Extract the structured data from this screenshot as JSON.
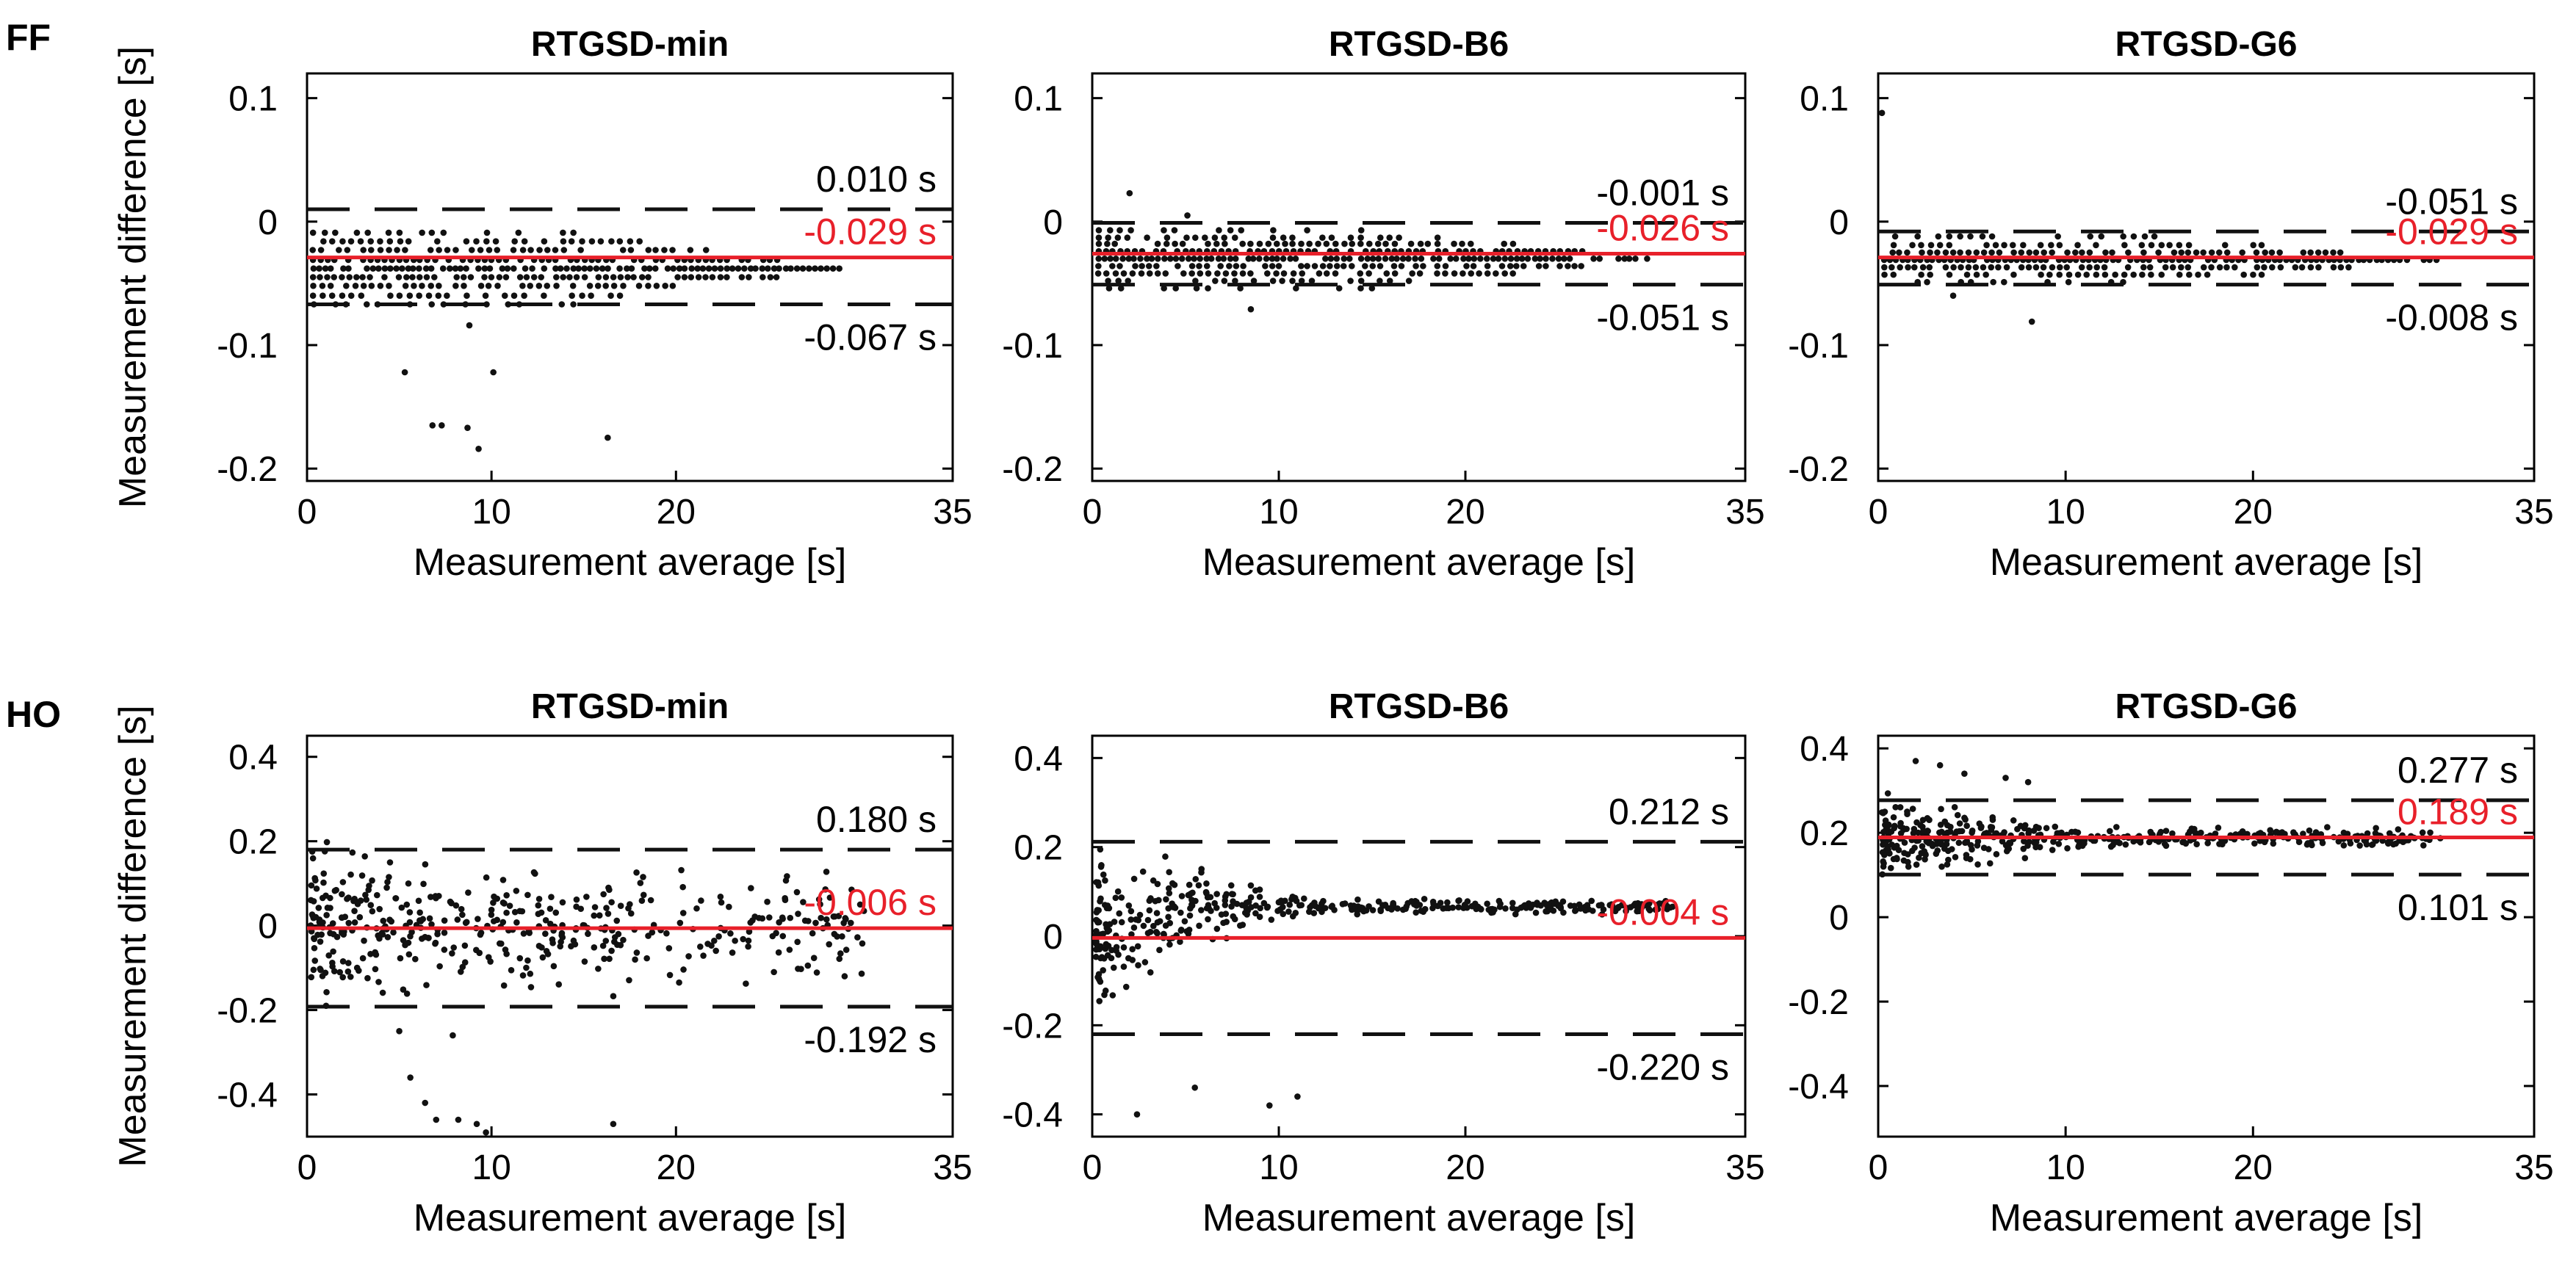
{
  "figure": {
    "row_labels": [
      "FF",
      "HO"
    ]
  },
  "colors": {
    "mean_line": "#e8202a",
    "limit_line": "#111111",
    "points": "#111111",
    "axes": "#000000"
  },
  "chart_data": [
    {
      "type": "scatter",
      "row": 0,
      "col": 0,
      "title": "RTGSD-min",
      "xlabel": "Measurement average [s]",
      "ylabel": "Measurement difference [s]",
      "xlim": [
        0,
        35
      ],
      "ylim": [
        -0.21,
        0.12
      ],
      "xticks": [
        0,
        10,
        20,
        35
      ],
      "yticks": [
        0.1,
        0,
        -0.1,
        -0.2
      ],
      "upper_limit": 0.01,
      "mean": -0.029,
      "lower_limit": -0.067,
      "upper_label": "0.010 s",
      "mean_label": "-0.029 s",
      "lower_label": "-0.067 s",
      "x_extent": 29,
      "levels": [
        -0.009,
        -0.016,
        -0.023,
        -0.031,
        -0.038,
        -0.045,
        -0.052,
        -0.06,
        -0.067
      ],
      "outliers": [
        [
          5.3,
          -0.122
        ],
        [
          6.8,
          -0.165
        ],
        [
          7.3,
          -0.165
        ],
        [
          8.7,
          -0.167
        ],
        [
          9.3,
          -0.184
        ],
        [
          10.1,
          -0.122
        ],
        [
          8.8,
          -0.084
        ],
        [
          16.3,
          -0.175
        ]
      ],
      "grid": false
    },
    {
      "type": "scatter",
      "row": 0,
      "col": 1,
      "title": "RTGSD-B6",
      "xlabel": "Measurement average [s]",
      "ylabel": "",
      "xlim": [
        0,
        35
      ],
      "ylim": [
        -0.21,
        0.12
      ],
      "xticks": [
        0,
        10,
        20,
        35
      ],
      "yticks": [
        0.1,
        0,
        -0.1,
        -0.2
      ],
      "upper_limit": -0.001,
      "mean": -0.026,
      "lower_limit": -0.051,
      "upper_label": "-0.001 s",
      "mean_label": "-0.026 s",
      "lower_label": "-0.051 s",
      "x_extent": 30,
      "levels": [
        -0.007,
        -0.013,
        -0.018,
        -0.024,
        -0.03,
        -0.036,
        -0.042,
        -0.048,
        -0.054
      ],
      "outliers": [
        [
          2.0,
          0.023
        ],
        [
          8.5,
          -0.071
        ],
        [
          5.1,
          0.005
        ]
      ],
      "grid": false
    },
    {
      "type": "scatter",
      "row": 0,
      "col": 2,
      "title": "RTGSD-G6",
      "xlabel": "Measurement average [s]",
      "ylabel": "",
      "xlim": [
        0,
        35
      ],
      "ylim": [
        -0.21,
        0.12
      ],
      "xticks": [
        0,
        10,
        20,
        35
      ],
      "yticks": [
        0.1,
        0,
        -0.1,
        -0.2
      ],
      "upper_limit": -0.051,
      "mean": -0.029,
      "lower_limit": -0.008,
      "upper_label": "-0.051 s",
      "mean_label": "-0.029 s",
      "lower_label": "-0.008 s",
      "line_upper": -0.008,
      "line_lower": -0.051,
      "x_extent": 30,
      "levels": [
        -0.012,
        -0.019,
        -0.025,
        -0.031,
        -0.037,
        -0.043,
        -0.049
      ],
      "outliers": [
        [
          0.2,
          0.088
        ],
        [
          8.2,
          -0.081
        ],
        [
          4.0,
          -0.06
        ]
      ],
      "grid": false
    },
    {
      "type": "scatter",
      "row": 1,
      "col": 0,
      "title": "RTGSD-min",
      "xlabel": "Measurement average [s]",
      "ylabel": "Measurement difference [s]",
      "xlim": [
        0,
        35
      ],
      "ylim": [
        -0.5,
        0.45
      ],
      "xticks": [
        0,
        10,
        20,
        35
      ],
      "yticks": [
        0.4,
        0.2,
        0,
        -0.2,
        -0.4
      ],
      "upper_limit": 0.18,
      "mean": -0.006,
      "lower_limit": -0.192,
      "upper_label": "0.180 s",
      "mean_label": "-0.006 s",
      "lower_label": "-0.192 s",
      "x_extent": 30,
      "spread_start": 0.26,
      "spread_end": 0.18,
      "offset": 0.0,
      "n_points": 430,
      "outliers": [
        [
          5.0,
          -0.25
        ],
        [
          5.6,
          -0.36
        ],
        [
          6.4,
          -0.42
        ],
        [
          7.0,
          -0.46
        ],
        [
          8.2,
          -0.46
        ],
        [
          9.2,
          -0.47
        ],
        [
          9.7,
          -0.49
        ],
        [
          7.9,
          -0.26
        ],
        [
          16.6,
          -0.47
        ]
      ],
      "grid": false
    },
    {
      "type": "scatter",
      "row": 1,
      "col": 1,
      "title": "RTGSD-B6",
      "xlabel": "Measurement average [s]",
      "ylabel": "",
      "xlim": [
        0,
        35
      ],
      "ylim": [
        -0.45,
        0.45
      ],
      "xticks": [
        0,
        10,
        20,
        35
      ],
      "yticks": [
        0.4,
        0.2,
        0,
        -0.2,
        -0.4
      ],
      "upper_limit": 0.212,
      "mean": -0.004,
      "lower_limit": -0.22,
      "upper_label": "0.212 s",
      "mean_label": "-0.004 s",
      "lower_label": "-0.220 s",
      "x_extent": 31,
      "spread_start": 0.22,
      "spread_end": 0.02,
      "offset": 0.07,
      "n_points": 430,
      "outliers": [
        [
          2.4,
          -0.4
        ],
        [
          9.5,
          -0.38
        ],
        [
          11.0,
          -0.36
        ],
        [
          5.5,
          -0.34
        ]
      ],
      "grid": false
    },
    {
      "type": "scatter",
      "row": 1,
      "col": 2,
      "title": "RTGSD-G6",
      "xlabel": "Measurement average [s]",
      "ylabel": "",
      "xlim": [
        0,
        35
      ],
      "ylim": [
        -0.52,
        0.43
      ],
      "xticks": [
        0,
        10,
        20,
        35
      ],
      "yticks": [
        0.4,
        0.2,
        0,
        -0.2,
        -0.4
      ],
      "upper_limit": 0.277,
      "mean": 0.189,
      "lower_limit": 0.101,
      "upper_label": "0.277 s",
      "mean_label": "0.189 s",
      "lower_label": "0.101 s",
      "x_extent": 30,
      "spread_start": 0.12,
      "spread_end": 0.03,
      "offset": 0.0,
      "n_points": 430,
      "outliers": [
        [
          2.0,
          0.37
        ],
        [
          3.3,
          0.36
        ],
        [
          4.6,
          0.34
        ],
        [
          6.8,
          0.33
        ],
        [
          8.0,
          0.32
        ]
      ],
      "grid": false
    }
  ]
}
